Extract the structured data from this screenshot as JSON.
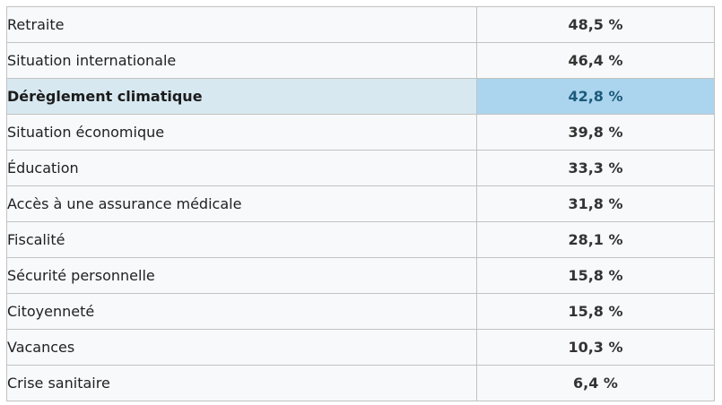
{
  "table": {
    "highlight_index": 2,
    "rows": [
      {
        "label": "Retraite",
        "value": "48,5 %"
      },
      {
        "label": "Situation internationale",
        "value": "46,4 %"
      },
      {
        "label": "Dérèglement climatique",
        "value": "42,8 %"
      },
      {
        "label": "Situation économique",
        "value": "39,8 %"
      },
      {
        "label": "Éducation",
        "value": "33,3 %"
      },
      {
        "label": "Accès à une assurance médicale",
        "value": "31,8 %"
      },
      {
        "label": "Fiscalité",
        "value": "28,1 %"
      },
      {
        "label": "Sécurité personnelle",
        "value": "15,8 %"
      },
      {
        "label": "Citoyenneté",
        "value": "15,8 %"
      },
      {
        "label": "Vacances",
        "value": "10,3 %"
      },
      {
        "label": "Crise sanitaire",
        "value": "6,4 %"
      }
    ],
    "colors": {
      "row_background": "#f8f9fa",
      "border": "#c2c2c2",
      "highlight_label_background": "#d7e8f0",
      "highlight_value_background": "#abd5ee",
      "highlight_value_text": "#1d5a7a",
      "label_text": "#202122",
      "value_text": "#333333"
    }
  },
  "chart_data": {
    "type": "table",
    "title": "",
    "categories": [
      "Retraite",
      "Situation internationale",
      "Dérèglement climatique",
      "Situation économique",
      "Éducation",
      "Accès à une assurance médicale",
      "Fiscalité",
      "Sécurité personnelle",
      "Citoyenneté",
      "Vacances",
      "Crise sanitaire"
    ],
    "values": [
      48.5,
      46.4,
      42.8,
      39.8,
      33.3,
      31.8,
      28.1,
      15.8,
      15.8,
      10.3,
      6.4
    ],
    "unit": "%",
    "highlighted_category": "Dérèglement climatique",
    "highlighted_value": 42.8,
    "layout_hints": {
      "sorted": "descending",
      "grid": "full cell borders",
      "value_alignment": "center",
      "label_alignment": "left"
    }
  }
}
